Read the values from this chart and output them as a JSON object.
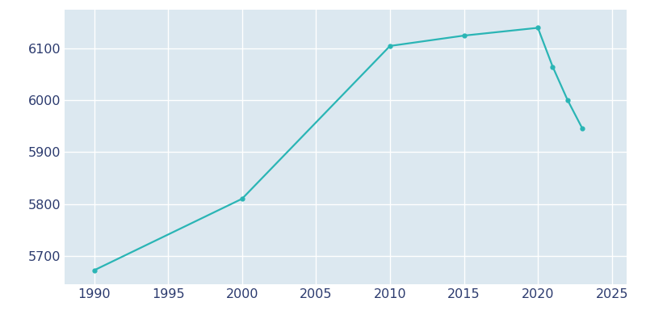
{
  "years": [
    1990,
    2000,
    2010,
    2015,
    2020,
    2021,
    2022,
    2023
  ],
  "population": [
    5672,
    5810,
    6105,
    6125,
    6140,
    6065,
    6001,
    5946
  ],
  "line_color": "#2ab5b5",
  "marker": "o",
  "marker_size": 3.5,
  "line_width": 1.6,
  "fig_bg_color": "#ffffff",
  "plot_bg_color": "#dce8f0",
  "grid_color": "#ffffff",
  "xlim": [
    1988,
    2026
  ],
  "ylim": [
    5645,
    6175
  ],
  "xticks": [
    1990,
    1995,
    2000,
    2005,
    2010,
    2015,
    2020,
    2025
  ],
  "yticks": [
    5700,
    5800,
    5900,
    6000,
    6100
  ],
  "tick_label_color": "#2b3a6e",
  "tick_fontsize": 11.5
}
